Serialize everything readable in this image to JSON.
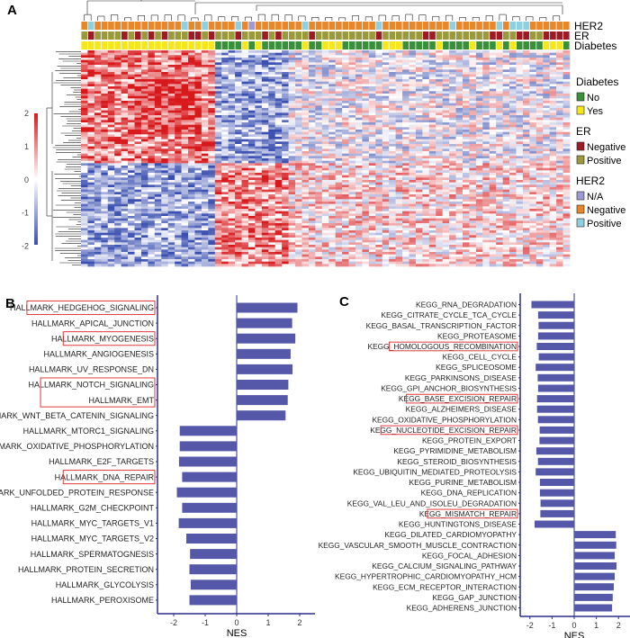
{
  "panels": {
    "a": "A",
    "b": "B",
    "c": "C"
  },
  "colors": {
    "high": "#d7191c",
    "mid": "#ffffff",
    "low": "#3a4fb0",
    "bar": "#5558a8",
    "axis": "#2b2f8a",
    "highlight_box": "#e0393e"
  },
  "chart_data": [
    {
      "type": "heatmap",
      "panel": "A",
      "color_scale": {
        "min": -2,
        "max": 2,
        "ticks": [
          "2",
          "1",
          "0",
          "-1",
          "-2"
        ]
      },
      "annotation_rows": [
        "HER2",
        "ER",
        "Diabetes"
      ],
      "annotations": {
        "Diabetes": "YYYYYYYYYYYYYYYYYYYYNNNNYNYNNNNNNYNNYYYNNNNNNYYYNNNNNYNNNNYNNNYNYNNNNYYYN",
        "ER": "PNPPPPNPNPNPNPPPNNPNPPPNPPPNPNPPPPNPPPPPPPPPNPPPPPPNNPPPPPPPPNNPPNNPPNNNN",
        "HER2": "GPGGGGGGGGGGGGGPGGPGGGGPGAGGGGGGGPGGGGGGGGGGPGGGGGGGGGGPGGGGGGPGPPPGGGGGG"
      },
      "legend": [
        {
          "title": "Diabetes",
          "items": [
            {
              "label": "No",
              "code": "N",
              "color": "#3a8f3a"
            },
            {
              "label": "Yes",
              "code": "Y",
              "color": "#f5e71c"
            }
          ]
        },
        {
          "title": "ER",
          "items": [
            {
              "label": "Negative",
              "code": "N",
              "color": "#9b1c24"
            },
            {
              "label": "Positive",
              "code": "P",
              "color": "#9a9a3c"
            }
          ]
        },
        {
          "title": "HER2",
          "items": [
            {
              "label": "N/A",
              "code": "A",
              "color": "#9c9ad0"
            },
            {
              "label": "Negative",
              "code": "G",
              "color": "#e8862a"
            },
            {
              "label": "Positive",
              "code": "P",
              "color": "#8fd0e0"
            }
          ]
        }
      ]
    },
    {
      "type": "bar",
      "panel": "B",
      "orientation": "horizontal",
      "xlabel": "NES",
      "xlim": [
        -2.5,
        2.2
      ],
      "xticks": [
        -2,
        -1,
        0,
        1,
        2
      ],
      "categories": [
        "HALLMARK_HEDGEHOG_SIGNALING",
        "HALLMARK_APICAL_JUNCTION",
        "HALLMARK_MYOGENESIS",
        "HALLMARK_ANGIOGENESIS",
        "HALLMARK_UV_RESPONSE_DN",
        "HALLMARK_NOTCH_SIGNALING",
        "HALLMARK_EMT",
        "HALLMARK_WNT_BETA_CATENIN_SIGNALING",
        "HALLMARK_MTORC1_SIGNALING",
        "HALLMARK_OXIDATIVE_PHOSPHORYLATION",
        "HALLMARK_E2F_TARGETS",
        "HALLMARK_DNA_REPAIR",
        "HALLMARK_UNFOLDED_PROTEIN_RESPONSE",
        "HALLMARK_G2M_CHECKPOINT",
        "HALLMARK_MYC_TARGETS_V1",
        "HALLMARK_MYC_TARGETS_V2",
        "HALLMARK_SPERMATOGNESIS",
        "HALLMARK_PROTEIN_SECRETION",
        "HALLMARK_GLYCOLYSIS",
        "HALLMARK_PEROXISOME"
      ],
      "values": [
        1.93,
        1.76,
        1.86,
        1.71,
        1.77,
        1.64,
        1.62,
        1.55,
        -1.81,
        -1.81,
        -1.83,
        -1.73,
        -1.9,
        -1.73,
        -1.84,
        -1.6,
        -1.48,
        -1.5,
        -1.46,
        -1.5
      ],
      "highlighted_groups": [
        [
          0
        ],
        [
          2
        ],
        [
          5,
          6
        ],
        [
          11
        ]
      ]
    },
    {
      "type": "bar",
      "panel": "C",
      "orientation": "horizontal",
      "xlabel": "NES",
      "xlim": [
        -2.5,
        2.3
      ],
      "xticks": [
        -2,
        -1,
        0,
        1,
        2
      ],
      "categories": [
        "KEGG_RNA_DEGRADATION",
        "KEGG_CITRATE_CYCLE_TCA_CYCLE",
        "KEGG_BASAL_TRANSCRIPTION_FACTOR",
        "KEGG_PROTEASOME",
        "KEGG_HOMOLOGOUS_RECOMBINATION",
        "KEGG_CELL_CYCLE",
        "KEGG_SPLICEOSOME",
        "KEGG_PARKINSONS_DISEASE",
        "KEGG_GPI_ANCHOR_BIOSYNTHESIS",
        "KEGG_BASE_EXCISION_REPAIR",
        "KEGG_ALZHEIMERS_DISEASE",
        "KEGG_OXIDATIVE_PHOSPHORYLATION",
        "KEGG_NUCLEOTIDE_EXCISION_REPAIR",
        "KEGG_PROTEIN_EXPORT",
        "KEGG_PYRIMIDINE_METABOLISM",
        "KEGG_STEROID_BIOSYNTHESIS",
        "KEGG_UBIQUITIN_MEDIATED_PROTEOLYSIS",
        "KEGG_PURINE_METABOLISM",
        "KEGG_DNA_REPLICATION",
        "KEGG_VAL_LEU_AND_ISOLEU_DEGRADATION",
        "KEGG_MISMATCH_REPAIR",
        "KEGG_HUNTINGTONS_DISEASE",
        "KEGG_DILATED_CARDIOMYOPATHY",
        "KEGG_VASCULAR_SMOOTH_MUSCLE_CONTRACTION",
        "KEGG_FOCAL_ADHESION",
        "KEGG_CALCIUM_SIGNALING_PATHWAY",
        "KEGG_HYPERTROPHIC_CARDIOMYOPATHY_HCM",
        "KEGG_ECM_RECEPTOR_INTERACTION",
        "KEGG_GAP_JUNCTION",
        "KEGG_ADHERENS_JUNCTION"
      ],
      "values": [
        -1.93,
        -1.63,
        -1.61,
        -1.63,
        -1.69,
        -1.6,
        -1.74,
        -1.65,
        -1.63,
        -1.68,
        -1.68,
        -1.64,
        -1.56,
        -1.57,
        -1.71,
        -1.64,
        -1.74,
        -1.55,
        -1.55,
        -1.52,
        -1.53,
        -1.79,
        1.88,
        1.9,
        1.83,
        1.91,
        1.83,
        1.79,
        1.74,
        1.71
      ],
      "highlighted_groups": [
        [
          4
        ],
        [
          9
        ],
        [
          12
        ],
        [
          20
        ]
      ]
    }
  ]
}
